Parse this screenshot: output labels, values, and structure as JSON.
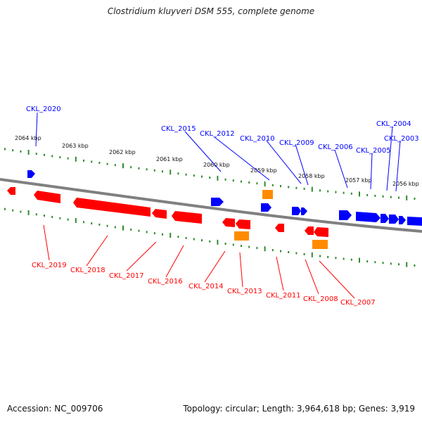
{
  "title": "Clostridium kluyveri DSM 555, complete genome",
  "footer": {
    "accession": "Accession: NC_009706",
    "summary": "Topology: circular; Length: 3,964,618 bp; Genes: 3,919"
  },
  "colors": {
    "forward": "#0000ff",
    "reverse": "#ff0000",
    "rna": "#ff8c00",
    "backbone": "#808080",
    "ruler": "#2e8b2e"
  },
  "scale_labels": [
    "2064 kbp",
    "2063 kbp",
    "2062 kbp",
    "2061 kbp",
    "2060 kbp",
    "2059 kbp",
    "2058 kbp",
    "2057 kbp",
    "2056 kbp"
  ],
  "forward_labels": [
    "CKL_2020",
    "CKL_2015",
    "CKL_2012",
    "CKL_2010",
    "CKL_2009",
    "CKL_2006",
    "CKL_2005",
    "CKL_2004",
    "CKL_2003"
  ],
  "reverse_labels": [
    "CKL_2019",
    "CKL_2018",
    "CKL_2017",
    "CKL_2016",
    "CKL_2014",
    "CKL_2013",
    "CKL_2011",
    "CKL_2008",
    "CKL_2007"
  ]
}
